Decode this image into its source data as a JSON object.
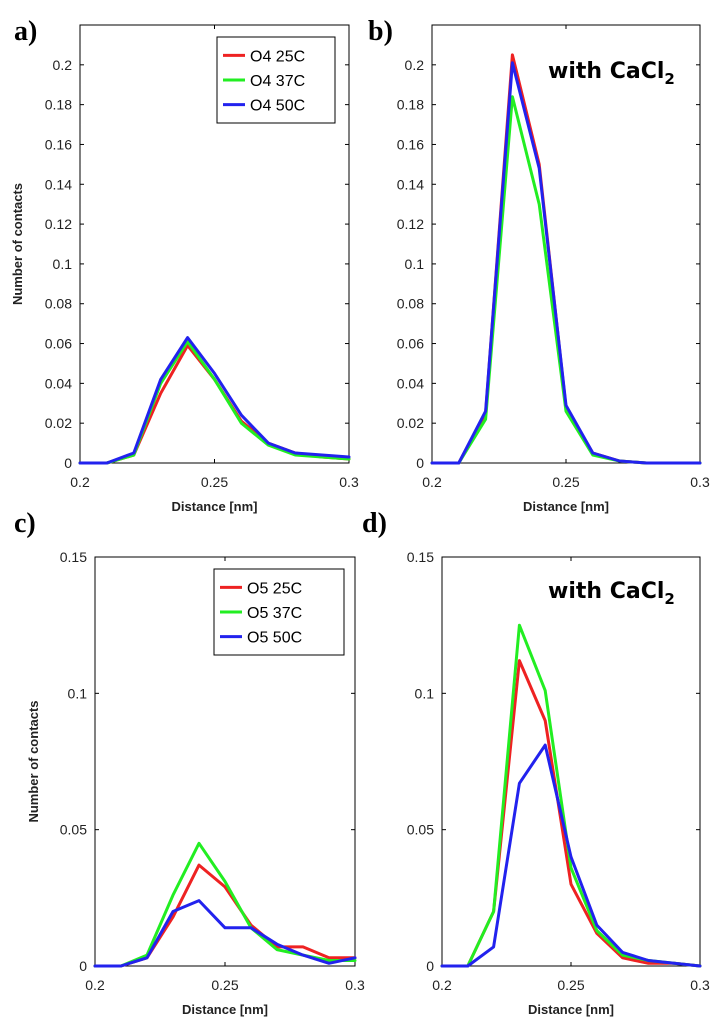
{
  "colors": {
    "red": "#ee2222",
    "green": "#22ee22",
    "blue": "#2222ee"
  },
  "chart_data": [
    {
      "panel": "a)",
      "type": "line",
      "xlabel": "Distance [nm]",
      "ylabel": "Number of contacts",
      "annotation": "",
      "xlim": [
        0.2,
        0.3
      ],
      "ylim": [
        0,
        0.22
      ],
      "xticks": [
        0.2,
        0.25,
        0.3
      ],
      "xtick_labels": [
        "0.2",
        "0.25",
        "0.3"
      ],
      "yticks": [
        0,
        0.02,
        0.04,
        0.06,
        0.08,
        0.1,
        0.12,
        0.14,
        0.16,
        0.18,
        0.2
      ],
      "ytick_labels": [
        "0",
        "0.02",
        "0.04",
        "0.06",
        "0.08",
        "0.1",
        "0.12",
        "0.14",
        "0.16",
        "0.18",
        "0.2"
      ],
      "legend_position": "top-right",
      "x": [
        0.2,
        0.21,
        0.22,
        0.23,
        0.24,
        0.25,
        0.26,
        0.27,
        0.28,
        0.29,
        0.3
      ],
      "series": [
        {
          "name": "O4 25C",
          "color": "#ee2222",
          "values": [
            0,
            0,
            0.004,
            0.035,
            0.059,
            0.042,
            0.021,
            0.01,
            0.005,
            0.003,
            0.002
          ]
        },
        {
          "name": "O4 37C",
          "color": "#22ee22",
          "values": [
            0,
            0,
            0.004,
            0.04,
            0.061,
            0.042,
            0.02,
            0.009,
            0.004,
            0.003,
            0.002
          ]
        },
        {
          "name": "O4 50C",
          "color": "#2222ee",
          "values": [
            0,
            0,
            0.005,
            0.042,
            0.063,
            0.045,
            0.024,
            0.01,
            0.005,
            0.004,
            0.003
          ]
        }
      ]
    },
    {
      "panel": "b)",
      "type": "line",
      "xlabel": "Distance [nm]",
      "ylabel": "",
      "annotation": "with CaCl",
      "annotation_sub": "2",
      "xlim": [
        0.2,
        0.3
      ],
      "ylim": [
        0,
        0.22
      ],
      "xticks": [
        0.2,
        0.25,
        0.3
      ],
      "xtick_labels": [
        "0.2",
        "0.25",
        "0.3"
      ],
      "yticks": [
        0,
        0.02,
        0.04,
        0.06,
        0.08,
        0.1,
        0.12,
        0.14,
        0.16,
        0.18,
        0.2
      ],
      "ytick_labels": [
        "0",
        "0.02",
        "0.04",
        "0.06",
        "0.08",
        "0.1",
        "0.12",
        "0.14",
        "0.16",
        "0.18",
        "0.2"
      ],
      "legend_position": "none",
      "x": [
        0.2,
        0.21,
        0.22,
        0.23,
        0.24,
        0.25,
        0.26,
        0.27,
        0.28,
        0.29,
        0.3
      ],
      "series": [
        {
          "name": "",
          "color": "#ee2222",
          "values": [
            0,
            0,
            0.025,
            0.205,
            0.15,
            0.028,
            0.005,
            0.001,
            0,
            0,
            0
          ]
        },
        {
          "name": "",
          "color": "#22ee22",
          "values": [
            0,
            0,
            0.022,
            0.184,
            0.13,
            0.026,
            0.004,
            0.001,
            0,
            0,
            0
          ]
        },
        {
          "name": "",
          "color": "#2222ee",
          "values": [
            0,
            0,
            0.026,
            0.201,
            0.148,
            0.029,
            0.005,
            0.001,
            0,
            0,
            0
          ]
        }
      ]
    },
    {
      "panel": "c)",
      "type": "line",
      "xlabel": "Distance [nm]",
      "ylabel": "Number of contacts",
      "annotation": "",
      "xlim": [
        0.2,
        0.3
      ],
      "ylim": [
        0,
        0.15
      ],
      "xticks": [
        0.2,
        0.25,
        0.3
      ],
      "xtick_labels": [
        "0.2",
        "0.25",
        "0.3"
      ],
      "yticks": [
        0,
        0.05,
        0.1,
        0.15
      ],
      "ytick_labels": [
        "0",
        "0.05",
        "0.1",
        "0.15"
      ],
      "legend_position": "top-right",
      "x": [
        0.2,
        0.21,
        0.22,
        0.23,
        0.24,
        0.25,
        0.26,
        0.27,
        0.28,
        0.29,
        0.3
      ],
      "series": [
        {
          "name": "O5 25C",
          "color": "#ee2222",
          "values": [
            0,
            0,
            0.003,
            0.018,
            0.037,
            0.029,
            0.015,
            0.007,
            0.007,
            0.003,
            0.003
          ]
        },
        {
          "name": "O5 37C",
          "color": "#22ee22",
          "values": [
            0,
            0,
            0.004,
            0.026,
            0.045,
            0.031,
            0.014,
            0.006,
            0.004,
            0.002,
            0.002
          ]
        },
        {
          "name": "O5 50C",
          "color": "#2222ee",
          "values": [
            0,
            0,
            0.003,
            0.02,
            0.024,
            0.014,
            0.014,
            0.008,
            0.004,
            0.001,
            0.003
          ]
        }
      ]
    },
    {
      "panel": "d)",
      "type": "line",
      "xlabel": "Distance [nm]",
      "ylabel": "",
      "annotation": "with CaCl",
      "annotation_sub": "2",
      "xlim": [
        0.2,
        0.3
      ],
      "ylim": [
        0,
        0.15
      ],
      "xticks": [
        0.2,
        0.25,
        0.3
      ],
      "xtick_labels": [
        "0.2",
        "0.25",
        "0.3"
      ],
      "yticks": [
        0,
        0.05,
        0.1,
        0.15
      ],
      "ytick_labels": [
        "0",
        "0.05",
        "0.1",
        "0.15"
      ],
      "legend_position": "none",
      "x": [
        0.2,
        0.21,
        0.22,
        0.23,
        0.24,
        0.25,
        0.26,
        0.27,
        0.28,
        0.29,
        0.3
      ],
      "series": [
        {
          "name": "",
          "color": "#ee2222",
          "values": [
            0,
            0,
            0.02,
            0.112,
            0.09,
            0.03,
            0.012,
            0.003,
            0.001,
            0.001,
            0
          ]
        },
        {
          "name": "",
          "color": "#22ee22",
          "values": [
            0,
            0,
            0.02,
            0.125,
            0.101,
            0.036,
            0.013,
            0.004,
            0.002,
            0.001,
            0
          ]
        },
        {
          "name": "",
          "color": "#2222ee",
          "values": [
            0,
            0,
            0.007,
            0.067,
            0.081,
            0.04,
            0.015,
            0.005,
            0.002,
            0.001,
            0
          ]
        }
      ]
    }
  ]
}
